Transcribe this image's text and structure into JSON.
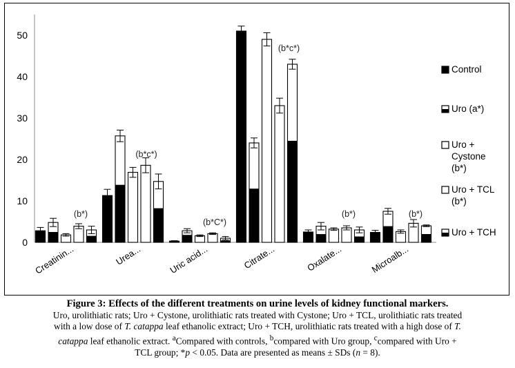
{
  "chart_data": {
    "type": "bar",
    "ylim": [
      0,
      55
    ],
    "yticks": [
      0,
      10,
      20,
      30,
      40,
      50
    ],
    "categories": [
      "Creatinin...",
      "Urea...",
      "Uric acid...",
      "Citrate...",
      "Oxalate...",
      "Microalb..."
    ],
    "series": [
      {
        "name": "Control",
        "style": "solid",
        "values": [
          2.8,
          11.3,
          0.3,
          51.0,
          2.5,
          2.4
        ],
        "errors": [
          0.8,
          1.5,
          0.1,
          1.2,
          0.5,
          0.5
        ]
      },
      {
        "name": "Uro (a*)",
        "style": "half",
        "values": [
          4.8,
          25.7,
          2.8,
          24.0,
          3.9,
          7.5
        ],
        "errors": [
          1.0,
          1.4,
          0.5,
          1.2,
          0.9,
          0.7
        ]
      },
      {
        "name": "Uro + Cystone (b*)",
        "style": "open",
        "values": [
          1.8,
          16.9,
          1.6,
          49.0,
          3.2,
          2.6
        ],
        "errors": [
          0.3,
          1.2,
          0.2,
          1.6,
          0.3,
          0.4
        ]
      },
      {
        "name": "Uro + TCL (b*)",
        "style": "open",
        "values": [
          3.9,
          18.6,
          2.1,
          33.0,
          3.5,
          4.6
        ],
        "errors": [
          0.6,
          1.8,
          0.2,
          1.8,
          0.5,
          0.9
        ]
      },
      {
        "name": "Uro + TCH",
        "style": "half",
        "values": [
          3.0,
          14.7,
          1.0,
          43.0,
          3.0,
          4.0
        ],
        "errors": [
          0.9,
          1.8,
          0.4,
          1.2,
          0.7,
          0.2
        ]
      }
    ],
    "fill_fraction": [
      [
        1,
        1,
        1,
        1,
        1,
        1
      ],
      [
        0.52,
        0.54,
        0.64,
        0.54,
        0.51,
        0.52
      ],
      [
        0,
        0,
        0,
        0,
        0,
        0
      ],
      [
        0,
        0,
        0,
        0,
        0,
        0
      ],
      [
        0.52,
        0.56,
        0.45,
        0.57,
        0.47,
        0.5
      ]
    ],
    "annotations": [
      {
        "text": "(b*)",
        "category": 0,
        "y": 6.2
      },
      {
        "text": "(b*c*)",
        "category": 1,
        "y": 20.6
      },
      {
        "text": "(b*C*)",
        "category": 2,
        "y": 4.2
      },
      {
        "text": "(b*c*)",
        "category": 3,
        "y": 46.2
      },
      {
        "text": "(b*)",
        "category": 4,
        "y": 6.2
      },
      {
        "text": "(b*)",
        "category": 5,
        "y": 6.2
      }
    ],
    "legend": [
      "Control",
      "Uro (a*)",
      "Uro +\nCystone\n(b*)",
      "Uro + TCL\n(b*)",
      "Uro + TCH"
    ],
    "legend_position": "right",
    "grid": false
  },
  "caption": {
    "title": "Figure 3: Effects of the different treatments on urine levels of kidney functional markers.",
    "line1": "Uro, urolithiatic rats; Uro + Cystone, urolithiatic rats treated with Cystone; Uro + TCL, urolithiatic rats treated",
    "line2a": "with a low dose of ",
    "species1": "T. catappa",
    "line2b": " leaf ethanolic extract; Uro + TCH, urolithiatic rats treated with a high dose of ",
    "species2a": "T.",
    "species2b": "catappa",
    "line3a": " leaf ethanolic extract. ",
    "sup_a": "a",
    "line3b": "Compared with controls, ",
    "sup_b": "b",
    "line3c": "compared with Uro group, ",
    "sup_c": "c",
    "line3d": "compared with Uro +",
    "line4a": "TCL group; *",
    "p_symbol": "p",
    "line4b": " < 0.05. Data are presented as means ± SDs (",
    "n_symbol": "n",
    "line4c": " = 8)."
  }
}
